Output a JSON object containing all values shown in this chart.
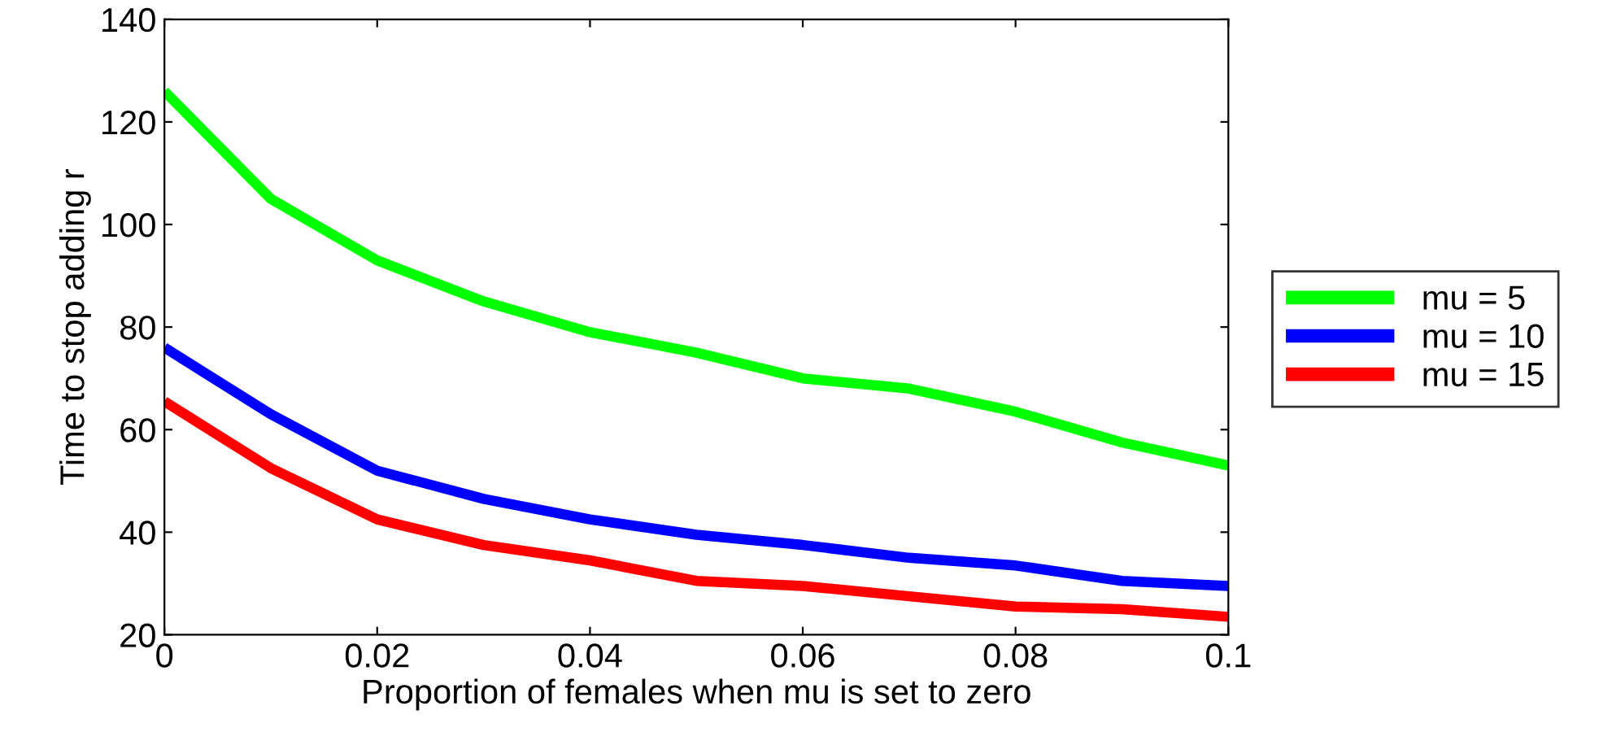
{
  "chart_data": {
    "type": "line",
    "xlabel": "Proportion of females when mu is set to zero",
    "ylabel": "Time to stop adding r",
    "x": [
      0,
      0.01,
      0.02,
      0.03,
      0.04,
      0.05,
      0.06,
      0.07,
      0.08,
      0.09,
      0.1
    ],
    "series": [
      {
        "name": "mu = 5",
        "color": "#00ff00",
        "values": [
          126,
          105,
          93,
          85,
          79,
          75,
          70,
          68,
          63.5,
          57.5,
          53
        ]
      },
      {
        "name": "mu = 10",
        "color": "#0000ff",
        "values": [
          76,
          63,
          52,
          46.5,
          42.5,
          39.5,
          37.5,
          35,
          33.5,
          30.5,
          29.5
        ]
      },
      {
        "name": "mu = 15",
        "color": "#ff0000",
        "values": [
          65.5,
          52.5,
          42.5,
          37.5,
          34.5,
          30.5,
          29.5,
          27.5,
          25.5,
          25,
          23.5
        ]
      }
    ],
    "xlim": [
      0,
      0.1
    ],
    "xticks": [
      0,
      0.02,
      0.04,
      0.06,
      0.08,
      0.1
    ],
    "ylim": [
      20,
      140
    ],
    "yticks": [
      20,
      40,
      60,
      80,
      100,
      120,
      140
    ],
    "grid": false,
    "legend": "right",
    "marker": "none",
    "line_style": "solid"
  }
}
